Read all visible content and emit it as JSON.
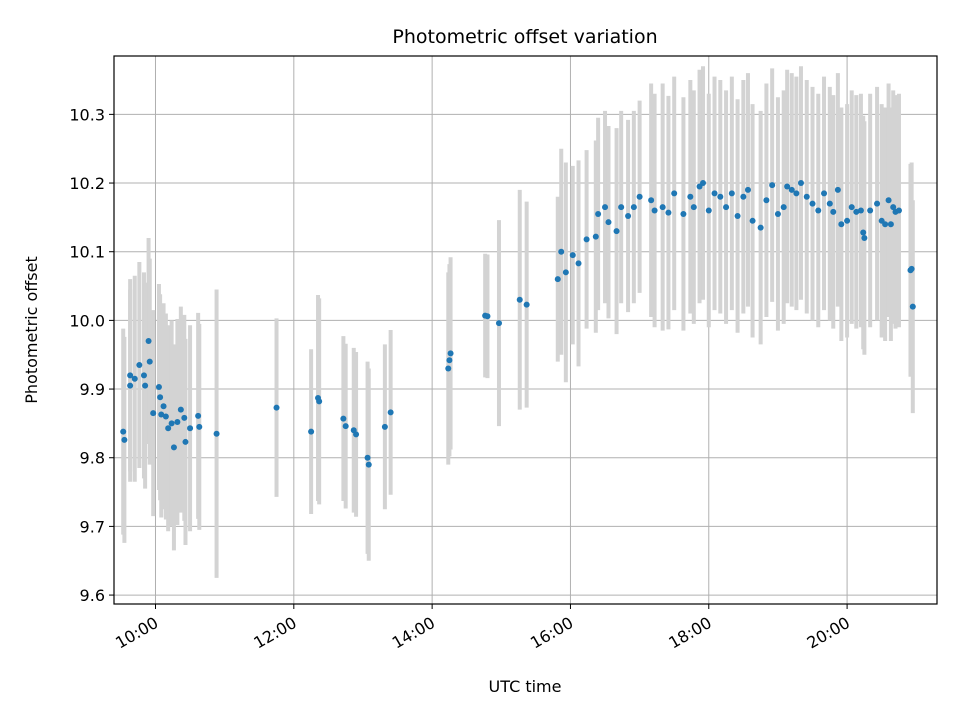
{
  "chart_data": {
    "type": "scatter",
    "title": "Photometric offset variation",
    "xlabel": "UTC time",
    "ylabel": "Photometric offset",
    "x_ticks": [
      "10:00",
      "12:00",
      "14:00",
      "16:00",
      "18:00",
      "20:00"
    ],
    "y_ticks": [
      "9.6",
      "9.7",
      "9.8",
      "9.9",
      "10.0",
      "10.1",
      "10.2",
      "10.3"
    ],
    "xlim": [
      "09:24",
      "21:18"
    ],
    "ylim": [
      9.587,
      10.385
    ],
    "grid": true,
    "colors": {
      "points": "#1f77b4",
      "errorbars": "#d3d3d3",
      "grid": "#b0b0b0"
    },
    "series": [
      {
        "points": [
          {
            "x": "09:32",
            "y": 9.838,
            "err": 0.15
          },
          {
            "x": "09:33",
            "y": 9.826,
            "err": 0.15
          },
          {
            "x": "09:38",
            "y": 9.92,
            "err": 0.14
          },
          {
            "x": "09:38",
            "y": 9.905,
            "err": 0.14
          },
          {
            "x": "09:42",
            "y": 9.915,
            "err": 0.15
          },
          {
            "x": "09:46",
            "y": 9.935,
            "err": 0.15
          },
          {
            "x": "09:50",
            "y": 9.92,
            "err": 0.15
          },
          {
            "x": "09:51",
            "y": 9.905,
            "err": 0.15
          },
          {
            "x": "09:54",
            "y": 9.97,
            "err": 0.15
          },
          {
            "x": "09:55",
            "y": 9.94,
            "err": 0.15
          },
          {
            "x": "09:58",
            "y": 9.865,
            "err": 0.15
          },
          {
            "x": "10:03",
            "y": 9.903,
            "err": 0.15
          },
          {
            "x": "10:04",
            "y": 9.888,
            "err": 0.15
          },
          {
            "x": "10:05",
            "y": 9.863,
            "err": 0.15
          },
          {
            "x": "10:07",
            "y": 9.875,
            "err": 0.15
          },
          {
            "x": "10:09",
            "y": 9.86,
            "err": 0.15
          },
          {
            "x": "10:11",
            "y": 9.843,
            "err": 0.15
          },
          {
            "x": "10:14",
            "y": 9.85,
            "err": 0.15
          },
          {
            "x": "10:16",
            "y": 9.815,
            "err": 0.15
          },
          {
            "x": "10:19",
            "y": 9.852,
            "err": 0.15
          },
          {
            "x": "10:22",
            "y": 9.87,
            "err": 0.15
          },
          {
            "x": "10:25",
            "y": 9.858,
            "err": 0.15
          },
          {
            "x": "10:26",
            "y": 9.823,
            "err": 0.15
          },
          {
            "x": "10:30",
            "y": 9.843,
            "err": 0.15
          },
          {
            "x": "10:37",
            "y": 9.861,
            "err": 0.15
          },
          {
            "x": "10:38",
            "y": 9.845,
            "err": 0.15
          },
          {
            "x": "10:53",
            "y": 9.835,
            "err": 0.21
          },
          {
            "x": "11:45",
            "y": 9.873,
            "err": 0.13
          },
          {
            "x": "12:15",
            "y": 9.838,
            "err": 0.12
          },
          {
            "x": "12:21",
            "y": 9.887,
            "err": 0.15
          },
          {
            "x": "12:22",
            "y": 9.882,
            "err": 0.15
          },
          {
            "x": "12:43",
            "y": 9.857,
            "err": 0.12
          },
          {
            "x": "12:45",
            "y": 9.846,
            "err": 0.12
          },
          {
            "x": "12:52",
            "y": 9.84,
            "err": 0.12
          },
          {
            "x": "12:54",
            "y": 9.834,
            "err": 0.12
          },
          {
            "x": "13:04",
            "y": 9.8,
            "err": 0.14
          },
          {
            "x": "13:05",
            "y": 9.79,
            "err": 0.14
          },
          {
            "x": "13:19",
            "y": 9.845,
            "err": 0.12
          },
          {
            "x": "13:24",
            "y": 9.866,
            "err": 0.12
          },
          {
            "x": "14:14",
            "y": 9.93,
            "err": 0.14
          },
          {
            "x": "14:15",
            "y": 9.942,
            "err": 0.14
          },
          {
            "x": "14:16",
            "y": 9.952,
            "err": 0.14
          },
          {
            "x": "14:46",
            "y": 10.007,
            "err": 0.09
          },
          {
            "x": "14:48",
            "y": 10.006,
            "err": 0.09
          },
          {
            "x": "14:58",
            "y": 9.996,
            "err": 0.15
          },
          {
            "x": "15:16",
            "y": 10.03,
            "err": 0.16
          },
          {
            "x": "15:22",
            "y": 10.023,
            "err": 0.15
          },
          {
            "x": "15:49",
            "y": 10.06,
            "err": 0.12
          },
          {
            "x": "15:52",
            "y": 10.1,
            "err": 0.15
          },
          {
            "x": "15:56",
            "y": 10.07,
            "err": 0.16
          },
          {
            "x": "16:02",
            "y": 10.095,
            "err": 0.13
          },
          {
            "x": "16:07",
            "y": 10.083,
            "err": 0.15
          },
          {
            "x": "16:14",
            "y": 10.118,
            "err": 0.13
          },
          {
            "x": "16:22",
            "y": 10.122,
            "err": 0.14
          },
          {
            "x": "16:24",
            "y": 10.155,
            "err": 0.14
          },
          {
            "x": "16:30",
            "y": 10.165,
            "err": 0.14
          },
          {
            "x": "16:33",
            "y": 10.143,
            "err": 0.14
          },
          {
            "x": "16:40",
            "y": 10.13,
            "err": 0.15
          },
          {
            "x": "16:44",
            "y": 10.165,
            "err": 0.14
          },
          {
            "x": "16:50",
            "y": 10.152,
            "err": 0.14
          },
          {
            "x": "16:55",
            "y": 10.165,
            "err": 0.14
          },
          {
            "x": "17:00",
            "y": 10.18,
            "err": 0.14
          },
          {
            "x": "17:10",
            "y": 10.175,
            "err": 0.17
          },
          {
            "x": "17:13",
            "y": 10.16,
            "err": 0.17
          },
          {
            "x": "17:20",
            "y": 10.165,
            "err": 0.18
          },
          {
            "x": "17:25",
            "y": 10.157,
            "err": 0.17
          },
          {
            "x": "17:30",
            "y": 10.185,
            "err": 0.17
          },
          {
            "x": "17:38",
            "y": 10.155,
            "err": 0.17
          },
          {
            "x": "17:44",
            "y": 10.18,
            "err": 0.17
          },
          {
            "x": "17:47",
            "y": 10.165,
            "err": 0.17
          },
          {
            "x": "17:52",
            "y": 10.195,
            "err": 0.17
          },
          {
            "x": "17:55",
            "y": 10.2,
            "err": 0.17
          },
          {
            "x": "18:00",
            "y": 10.16,
            "err": 0.17
          },
          {
            "x": "18:05",
            "y": 10.185,
            "err": 0.17
          },
          {
            "x": "18:10",
            "y": 10.18,
            "err": 0.17
          },
          {
            "x": "18:15",
            "y": 10.165,
            "err": 0.17
          },
          {
            "x": "18:20",
            "y": 10.185,
            "err": 0.17
          },
          {
            "x": "18:25",
            "y": 10.152,
            "err": 0.17
          },
          {
            "x": "18:30",
            "y": 10.18,
            "err": 0.17
          },
          {
            "x": "18:34",
            "y": 10.19,
            "err": 0.17
          },
          {
            "x": "18:38",
            "y": 10.145,
            "err": 0.17
          },
          {
            "x": "18:45",
            "y": 10.135,
            "err": 0.17
          },
          {
            "x": "18:50",
            "y": 10.175,
            "err": 0.17
          },
          {
            "x": "18:55",
            "y": 10.197,
            "err": 0.17
          },
          {
            "x": "19:00",
            "y": 10.155,
            "err": 0.17
          },
          {
            "x": "19:05",
            "y": 10.165,
            "err": 0.17
          },
          {
            "x": "19:08",
            "y": 10.195,
            "err": 0.17
          },
          {
            "x": "19:12",
            "y": 10.19,
            "err": 0.17
          },
          {
            "x": "19:16",
            "y": 10.185,
            "err": 0.17
          },
          {
            "x": "19:20",
            "y": 10.2,
            "err": 0.17
          },
          {
            "x": "19:25",
            "y": 10.18,
            "err": 0.17
          },
          {
            "x": "19:30",
            "y": 10.17,
            "err": 0.17
          },
          {
            "x": "19:35",
            "y": 10.16,
            "err": 0.17
          },
          {
            "x": "19:40",
            "y": 10.185,
            "err": 0.17
          },
          {
            "x": "19:45",
            "y": 10.17,
            "err": 0.17
          },
          {
            "x": "19:48",
            "y": 10.158,
            "err": 0.17
          },
          {
            "x": "19:52",
            "y": 10.19,
            "err": 0.17
          },
          {
            "x": "19:55",
            "y": 10.14,
            "err": 0.17
          },
          {
            "x": "20:00",
            "y": 10.145,
            "err": 0.17
          },
          {
            "x": "20:04",
            "y": 10.165,
            "err": 0.17
          },
          {
            "x": "20:08",
            "y": 10.158,
            "err": 0.17
          },
          {
            "x": "20:12",
            "y": 10.16,
            "err": 0.17
          },
          {
            "x": "20:14",
            "y": 10.128,
            "err": 0.17
          },
          {
            "x": "20:15",
            "y": 10.12,
            "err": 0.17
          },
          {
            "x": "20:20",
            "y": 10.16,
            "err": 0.17
          },
          {
            "x": "20:26",
            "y": 10.17,
            "err": 0.17
          },
          {
            "x": "20:30",
            "y": 10.145,
            "err": 0.17
          },
          {
            "x": "20:33",
            "y": 10.14,
            "err": 0.17
          },
          {
            "x": "20:36",
            "y": 10.175,
            "err": 0.17
          },
          {
            "x": "20:38",
            "y": 10.14,
            "err": 0.17
          },
          {
            "x": "20:40",
            "y": 10.165,
            "err": 0.17
          },
          {
            "x": "20:42",
            "y": 10.158,
            "err": 0.17
          },
          {
            "x": "20:45",
            "y": 10.16,
            "err": 0.17
          },
          {
            "x": "20:55",
            "y": 10.073,
            "err": 0.155
          },
          {
            "x": "20:56",
            "y": 10.075,
            "err": 0.155
          },
          {
            "x": "20:57",
            "y": 10.02,
            "err": 0.155
          }
        ]
      }
    ]
  }
}
